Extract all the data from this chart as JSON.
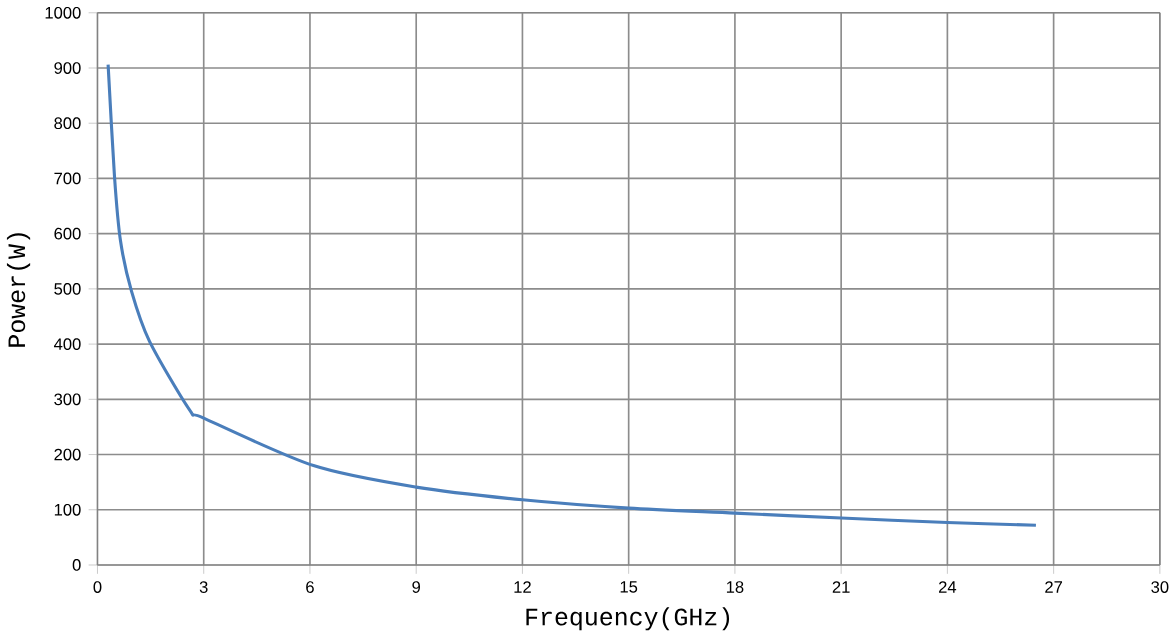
{
  "chart_data": {
    "type": "line",
    "xlabel": "Frequency(GHz)",
    "ylabel": "Power(W)",
    "series": [
      {
        "color": "#4a7ebb",
        "x": [
          0.3,
          0.48,
          0.65,
          0.96,
          1.47,
          2.6,
          3,
          6.1,
          9,
          12,
          15,
          18,
          21,
          24,
          26.5
        ],
        "values": [
          906,
          704,
          587,
          496,
          405,
          281,
          266,
          180,
          141,
          118,
          103,
          94,
          85,
          77,
          72
        ]
      }
    ],
    "xlim": [
      0,
      30
    ],
    "xticks": [
      0,
      3,
      6,
      9,
      12,
      15,
      18,
      21,
      24,
      27,
      30
    ],
    "ylim": [
      0,
      1000
    ],
    "yticks": [
      0,
      100,
      200,
      300,
      400,
      500,
      600,
      700,
      800,
      900,
      1000
    ],
    "grid": true,
    "marker": "none",
    "line_style": "solid"
  }
}
